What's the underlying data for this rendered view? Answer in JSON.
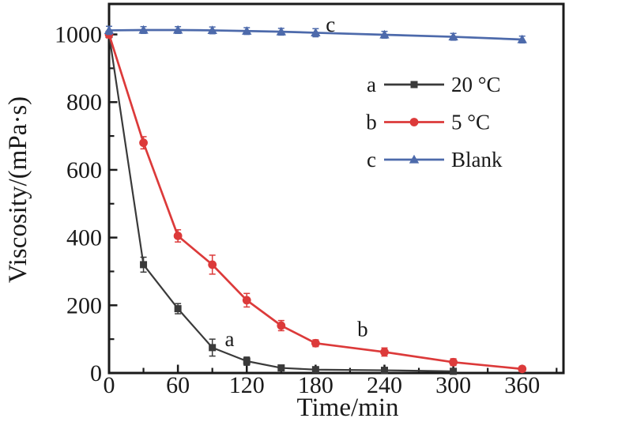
{
  "figure": {
    "background": "#ffffff",
    "ink_color": "#1a1a1a"
  },
  "chart_data": {
    "type": "line",
    "title": "",
    "xlabel": "Time/min",
    "ylabel": "Viscosity/(mPa·s)",
    "xlim": [
      0,
      396
    ],
    "ylim": [
      0,
      1090
    ],
    "grid": false,
    "x_major_ticks": [
      0,
      60,
      120,
      180,
      240,
      300,
      360
    ],
    "x_minor_ticks": [
      30,
      90,
      150,
      210,
      270,
      330,
      390
    ],
    "y_major_ticks": [
      0,
      200,
      400,
      600,
      800,
      1000
    ],
    "y_minor_ticks": [
      100,
      300,
      500,
      700,
      900
    ],
    "legend_position": "inside-upper-right",
    "series": [
      {
        "id": "a",
        "name": "20 °C",
        "curve_letter": "a",
        "color": "#3a3a3a",
        "marker": "square",
        "x": [
          0,
          30,
          60,
          90,
          120,
          150,
          180,
          240,
          300
        ],
        "y": [
          1000,
          320,
          190,
          75,
          35,
          15,
          10,
          8,
          5
        ],
        "yerr": [
          10,
          22,
          15,
          25,
          12,
          8,
          6,
          6,
          5
        ]
      },
      {
        "id": "b",
        "name": "5 °C",
        "curve_letter": "b",
        "color": "#dc3a3a",
        "marker": "circle",
        "x": [
          0,
          30,
          60,
          90,
          120,
          150,
          180,
          240,
          300,
          360
        ],
        "y": [
          1000,
          680,
          405,
          320,
          215,
          140,
          88,
          62,
          32,
          12
        ],
        "yerr": [
          10,
          18,
          18,
          28,
          20,
          15,
          10,
          12,
          10,
          8
        ]
      },
      {
        "id": "c",
        "name": "Blank",
        "curve_letter": "c",
        "color": "#4d6aab",
        "marker": "triangle",
        "x": [
          0,
          30,
          60,
          90,
          120,
          150,
          180,
          240,
          300,
          360
        ],
        "y": [
          1012,
          1013,
          1013,
          1012,
          1010,
          1008,
          1005,
          999,
          993,
          985
        ],
        "yerr": [
          12,
          10,
          10,
          10,
          10,
          10,
          12,
          10,
          10,
          10
        ]
      }
    ],
    "legend": [
      {
        "letter": "a",
        "label": "20 °C"
      },
      {
        "letter": "b",
        "label": "5 °C"
      },
      {
        "letter": "c",
        "label": "Blank"
      }
    ],
    "annotations": [
      {
        "text": "a",
        "x": 105,
        "y": 100
      },
      {
        "text": "b",
        "x": 221,
        "y": 129
      },
      {
        "text": "c",
        "x": 193,
        "y": 1029
      }
    ]
  }
}
